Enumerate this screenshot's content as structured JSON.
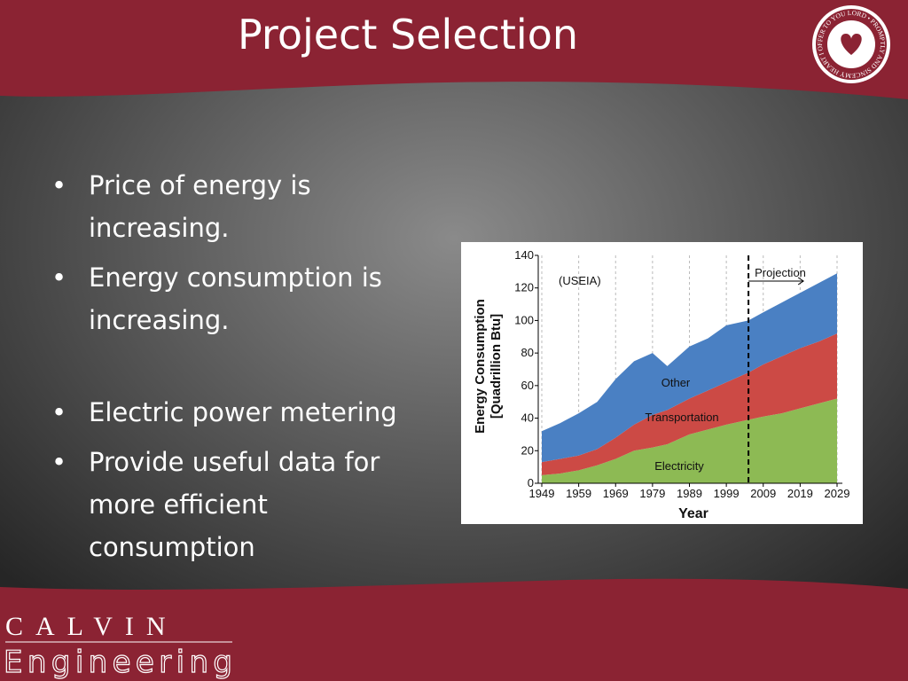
{
  "slide": {
    "title": "Project Selection",
    "bullets": [
      "Price of energy is increasing.",
      "Energy consumption is increasing.",
      "Electric power metering",
      "Provide useful data for more efficient consumption"
    ],
    "logo_text": "MY HEART I OFFER TO YOU LORD • PROMPTLY AND SINCERELY •",
    "footer": {
      "line1": "CALVIN",
      "line2": "Engineering"
    }
  },
  "chart_data": {
    "type": "stacked_area",
    "xlabel": "Year",
    "ylabel": [
      "Energy Consumption",
      "[Quadrillion Btu]"
    ],
    "x": [
      1949,
      1954,
      1959,
      1964,
      1969,
      1974,
      1979,
      1983,
      1989,
      1994,
      1999,
      2005,
      2009,
      2014,
      2019,
      2024,
      2029
    ],
    "series": [
      {
        "name": "Electricity",
        "color": "#8dba54",
        "values": [
          5,
          6,
          8,
          11,
          15,
          20,
          22,
          24,
          30,
          33,
          36,
          39,
          41,
          43,
          46,
          49,
          52
        ]
      },
      {
        "name": "Transportation",
        "color": "#cc4a45",
        "values": [
          8,
          9,
          9,
          10,
          13,
          16,
          20,
          21,
          22,
          24,
          26,
          29,
          32,
          35,
          37,
          38,
          40
        ]
      },
      {
        "name": "Other",
        "color": "#4a80c3",
        "values": [
          19,
          22,
          26,
          29,
          36,
          39,
          38,
          27,
          32,
          32,
          35,
          32,
          32,
          33,
          34,
          36,
          37
        ]
      }
    ],
    "annotations": [
      "(USEIA)",
      "Projection"
    ],
    "projection_x": 2005,
    "xlim": [
      1949,
      2029
    ],
    "xticks": [
      1949,
      1959,
      1969,
      1979,
      1989,
      1999,
      2009,
      2019,
      2029
    ],
    "ylim": [
      0,
      140
    ],
    "yticks": [
      0,
      20,
      40,
      60,
      80,
      100,
      120,
      140
    ],
    "grid": true
  }
}
